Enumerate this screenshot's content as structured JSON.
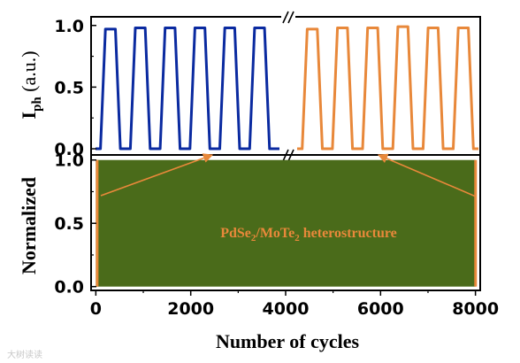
{
  "chart_data": [
    {
      "type": "line",
      "panel": "top",
      "ylabel": "I",
      "ylabel_sub": "ph",
      "ylabel_suffix": " (a.u.)",
      "ylim": [
        -0.05,
        1.07
      ],
      "yticks": [
        "0.0",
        "0.5",
        "1.0"
      ],
      "ytick_values": [
        0.0,
        0.5,
        1.0
      ],
      "axis_break": true,
      "series": [
        {
          "color": "#0a2aa0",
          "values": [
            0,
            0,
            0.97,
            0.97,
            0.97,
            0,
            0,
            0,
            0.98,
            0.98,
            0.98,
            0,
            0,
            0,
            0.98,
            0.98,
            0.98,
            0,
            0,
            0,
            0.98,
            0.98,
            0.98,
            0,
            0,
            0,
            0.98,
            0.98,
            0.98,
            0,
            0,
            0,
            0.98,
            0.98,
            0.98,
            0,
            0,
            0
          ]
        },
        {
          "color": "#e8883a",
          "values": [
            0,
            0,
            0.97,
            0.97,
            0.97,
            0,
            0,
            0,
            0.98,
            0.98,
            0.98,
            0,
            0,
            0,
            0.98,
            0.98,
            0.98,
            0,
            0,
            0,
            0.99,
            0.99,
            0.99,
            0,
            0,
            0,
            0.98,
            0.98,
            0.98,
            0,
            0,
            0,
            0.98,
            0.98,
            0.98,
            0,
            0
          ]
        }
      ]
    },
    {
      "type": "area",
      "panel": "bottom",
      "ylabel": "Normalized",
      "xlabel": "Number of cycles",
      "xlim": [
        -100,
        8100
      ],
      "ylim": [
        -0.03,
        1.04
      ],
      "xticks": [
        "0",
        "2000",
        "4000",
        "6000",
        "8000"
      ],
      "xtick_values": [
        0,
        2000,
        4000,
        6000,
        8000
      ],
      "yticks": [
        "0.0",
        "0.5",
        "1.0"
      ],
      "ytick_values": [
        0.0,
        0.5,
        1.0
      ],
      "fill_color": "#4a6b1a",
      "band_min": 0.0,
      "band_max": 1.0,
      "highlight_regions": [
        [
          0,
          25
        ],
        [
          7975,
          8000
        ]
      ],
      "highlight_color": "#e8883a",
      "annotation": {
        "text_main": "PdSe",
        "text_sub1": "2",
        "text_mid": "/MoTe",
        "text_sub2": "2",
        "text_tail": " heterostructure",
        "color": "#e8883a"
      }
    }
  ],
  "watermark": "大树读读"
}
